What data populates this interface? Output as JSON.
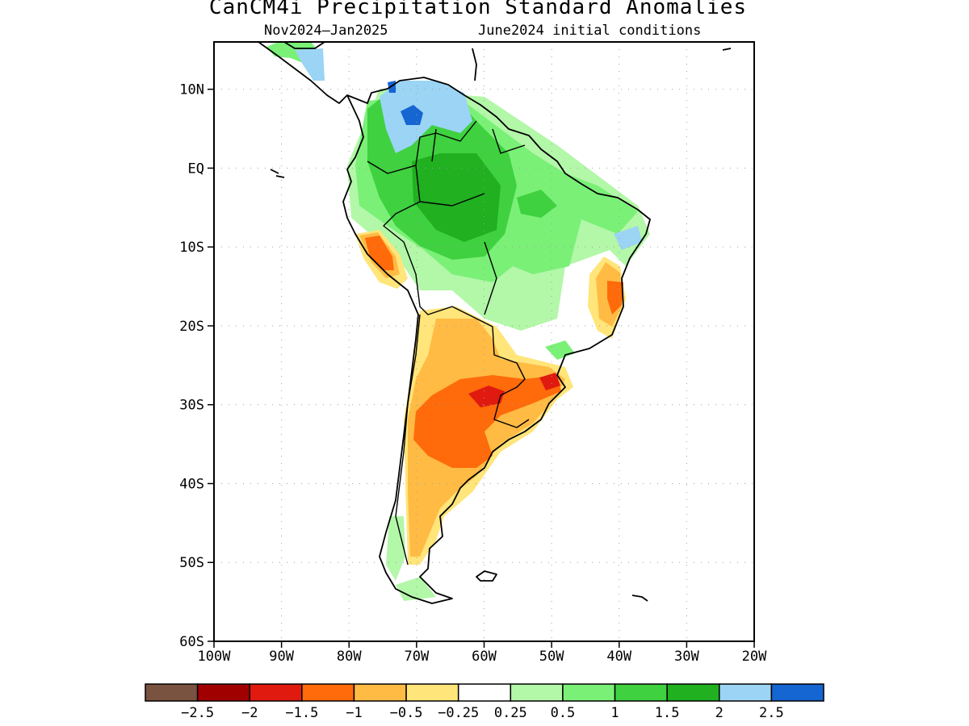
{
  "title": "CanCM4i Precipitation Standard Anomalies",
  "subtitle_left": "Nov2024–Jan2025",
  "subtitle_right": "June2024 initial conditions",
  "map": {
    "lon_range": [
      -100,
      -20
    ],
    "lat_range": [
      -60,
      16
    ],
    "lat_ticks": [
      {
        "value": 10,
        "label": "10N"
      },
      {
        "value": 0,
        "label": "EQ"
      },
      {
        "value": -10,
        "label": "10S"
      },
      {
        "value": -20,
        "label": "20S"
      },
      {
        "value": -30,
        "label": "30S"
      },
      {
        "value": -40,
        "label": "40S"
      },
      {
        "value": -50,
        "label": "50S"
      },
      {
        "value": -60,
        "label": "60S"
      }
    ],
    "lon_ticks": [
      {
        "value": -100,
        "label": "100W"
      },
      {
        "value": -90,
        "label": "90W"
      },
      {
        "value": -80,
        "label": "80W"
      },
      {
        "value": -70,
        "label": "70W"
      },
      {
        "value": -60,
        "label": "60W"
      },
      {
        "value": -50,
        "label": "50W"
      },
      {
        "value": -40,
        "label": "40W"
      },
      {
        "value": -30,
        "label": "30W"
      },
      {
        "value": -20,
        "label": "20W"
      }
    ],
    "grid": true
  },
  "legend": {
    "colors": [
      "#7a5240",
      "#a00000",
      "#e01a0f",
      "#ff6a0a",
      "#ffbb44",
      "#ffe57a",
      "#ffffff",
      "#b3f7a8",
      "#7af077",
      "#3fd13f",
      "#20b020",
      "#9bd4f5",
      "#1565d2"
    ],
    "labels": [
      "−2.5",
      "−2",
      "−1.5",
      "−1",
      "−0.5",
      "−0.25",
      "0.25",
      "0.5",
      "1",
      "1.5",
      "2",
      "2.5"
    ]
  }
}
